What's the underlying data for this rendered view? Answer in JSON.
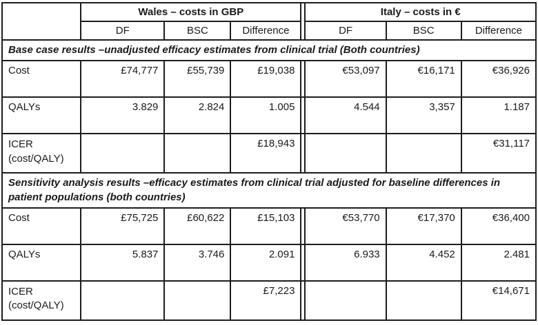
{
  "table": {
    "col_groups": [
      {
        "label": "Wales – costs in GBP"
      },
      {
        "label": "Italy – costs in €"
      }
    ],
    "sub_headers": [
      "DF",
      "BSC",
      "Difference",
      "DF",
      "BSC",
      "Difference"
    ],
    "sections": [
      {
        "title": "Base case results –unadjusted efficacy estimates from clinical trial (Both countries)",
        "rows": [
          {
            "label": "Cost",
            "cells": [
              "£74,777",
              "£55,739",
              "£19,038",
              "€53,097",
              "€16,171",
              "€36,926"
            ]
          },
          {
            "label": "QALYs",
            "cells": [
              "3.829",
              "2.824",
              "1.005",
              "4.544",
              "3,357",
              "1.187"
            ]
          },
          {
            "label": "ICER",
            "label2": "(cost/QALY)",
            "difference_wales": "£18,943",
            "difference_italy": "€31,117"
          }
        ]
      },
      {
        "title": "Sensitivity analysis results –efficacy estimates from clinical trial adjusted for baseline differences in patient populations (both countries)",
        "rows": [
          {
            "label": "Cost",
            "cells": [
              "£75,725",
              "£60,622",
              "£15,103",
              "€53,770",
              "€17,370",
              "€36,400"
            ]
          },
          {
            "label": "QALYs",
            "cells": [
              "5.837",
              "3.746",
              "2.091",
              "6.933",
              "4.452",
              "2.481"
            ]
          },
          {
            "label": "ICER",
            "label2": "(cost/QALY)",
            "difference_wales": "£7,223",
            "difference_italy": "€14,671"
          }
        ]
      }
    ],
    "colors": {
      "shaded_cell": "#e4e4e4",
      "border": "#1c1c1c",
      "background": "#ffffff"
    }
  }
}
